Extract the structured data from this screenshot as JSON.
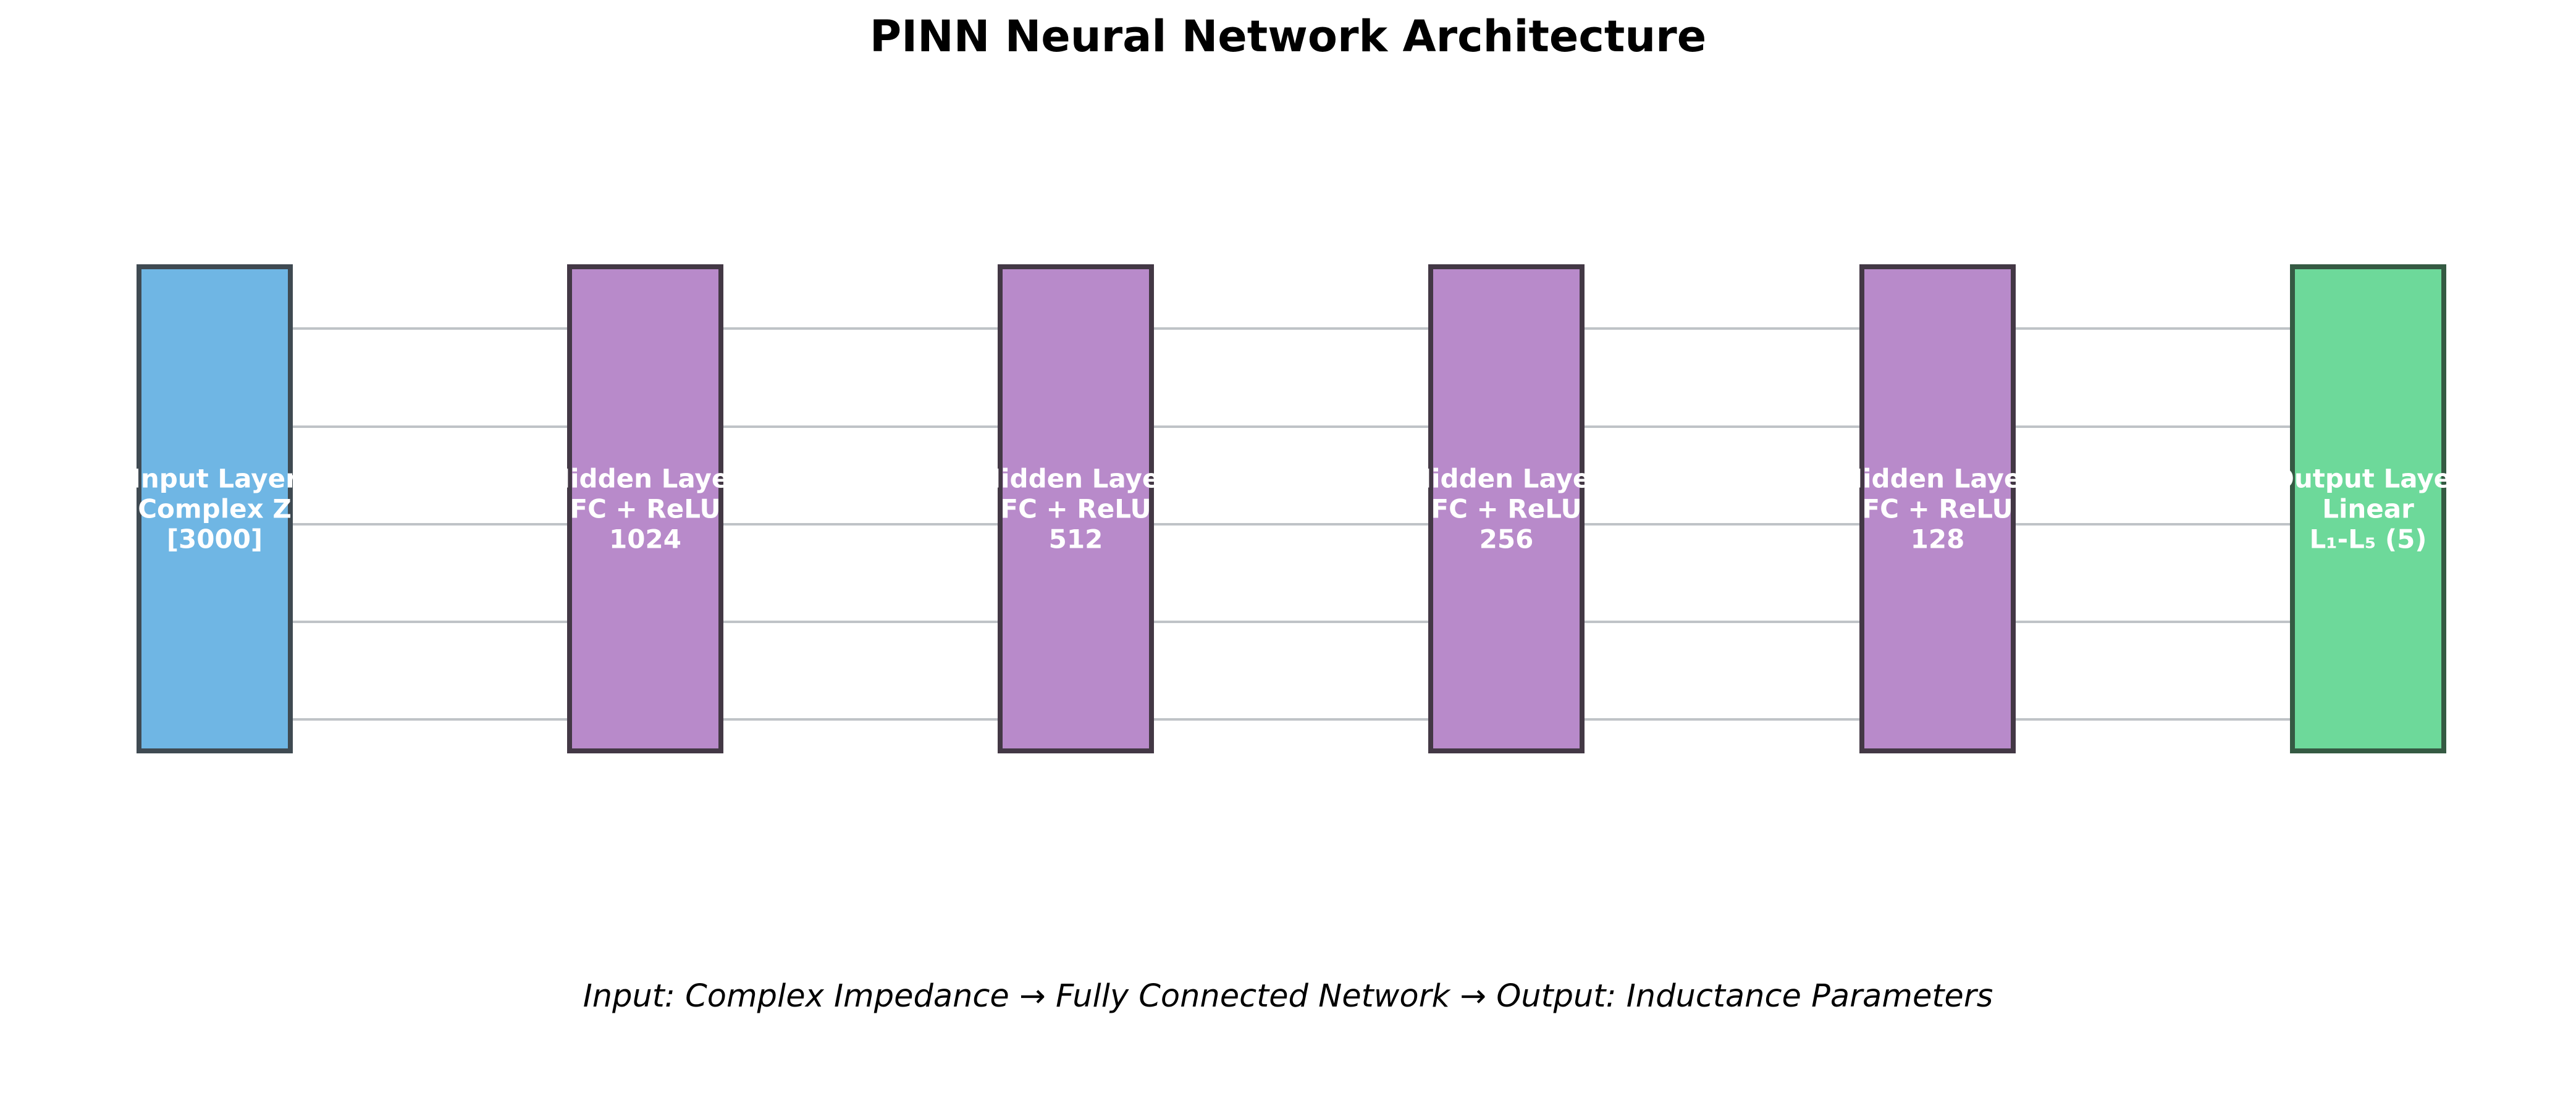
{
  "title": "PINN Neural Network Architecture",
  "caption": "Input: Complex Impedance → Fully Connected Network → Output: Inductance Parameters",
  "colors": {
    "input_fill": "#6fb6e4",
    "input_border": "#3f4a52",
    "hidden_fill": "#b88aca",
    "hidden_border": "#433845",
    "output_fill": "#6dd99a",
    "output_border": "#355a43",
    "connector": "#bfc3c7",
    "label_text": "#ffffff"
  },
  "layers": [
    {
      "kind": "input",
      "name": "Input Layer",
      "line2": "Complex Z",
      "line3": "[3000]"
    },
    {
      "kind": "hidden",
      "name": "Hidden Layer",
      "line2": "FC + ReLU",
      "line3": "1024"
    },
    {
      "kind": "hidden",
      "name": "Hidden Layer",
      "line2": "FC + ReLU",
      "line3": "512"
    },
    {
      "kind": "hidden",
      "name": "Hidden Layer",
      "line2": "FC + ReLU",
      "line3": "256"
    },
    {
      "kind": "hidden",
      "name": "Hidden Layer",
      "line2": "FC + ReLU",
      "line3": "128"
    },
    {
      "kind": "output",
      "name": "Output Layer",
      "line2": "Linear",
      "line3": "L₁-L₅ (5)"
    }
  ],
  "connections_per_gap": 5
}
